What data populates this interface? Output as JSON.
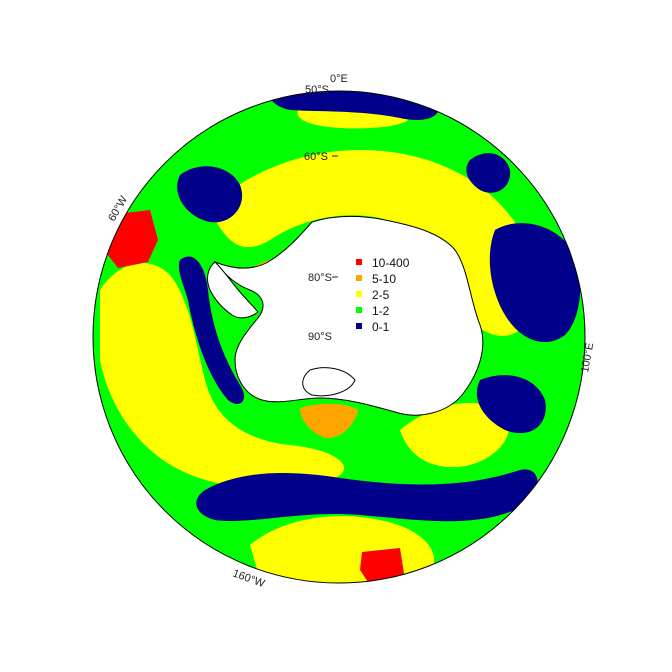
{
  "map": {
    "projection": "south polar stereographic",
    "labels": {
      "lon_0": "0°E",
      "lon_60w": "60°W",
      "lon_100e": "100°E",
      "lon_160w": "160°W",
      "lat_50": "50°S",
      "lat_60": "60°S",
      "lat_80": "80°S",
      "lat_90": "90°S"
    },
    "legend": {
      "items": [
        {
          "label": "10-400",
          "color": "#ff0000"
        },
        {
          "label": "5-10",
          "color": "#ffa500"
        },
        {
          "label": "2-5",
          "color": "#ffff00"
        },
        {
          "label": "1-2",
          "color": "#00ff00"
        },
        {
          "label": "0-1",
          "color": "#00008b"
        }
      ]
    },
    "colors": {
      "land": "#ffffff",
      "coastline": "#000000",
      "boundary": "#000000",
      "fronts": "#ff0000"
    }
  }
}
